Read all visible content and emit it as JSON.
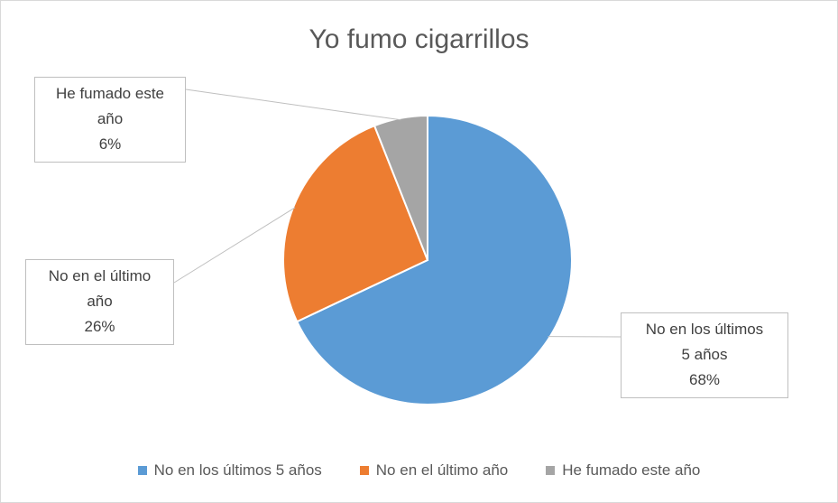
{
  "chart_data": {
    "type": "pie",
    "title": "Yo fumo cigarrillos",
    "categories": [
      "No en los últimos 5 años",
      "No en el último año",
      "He fumado este año"
    ],
    "values": [
      68,
      26,
      6
    ],
    "value_labels": [
      "68%",
      "26%",
      "6%"
    ],
    "data_labels": [
      "No en los últimos\n5 años",
      "No en el último\naño",
      "He fumado este\naño"
    ],
    "colors": [
      "#5b9bd5",
      "#ed7d31",
      "#a5a5a5"
    ],
    "legend_position": "bottom"
  }
}
